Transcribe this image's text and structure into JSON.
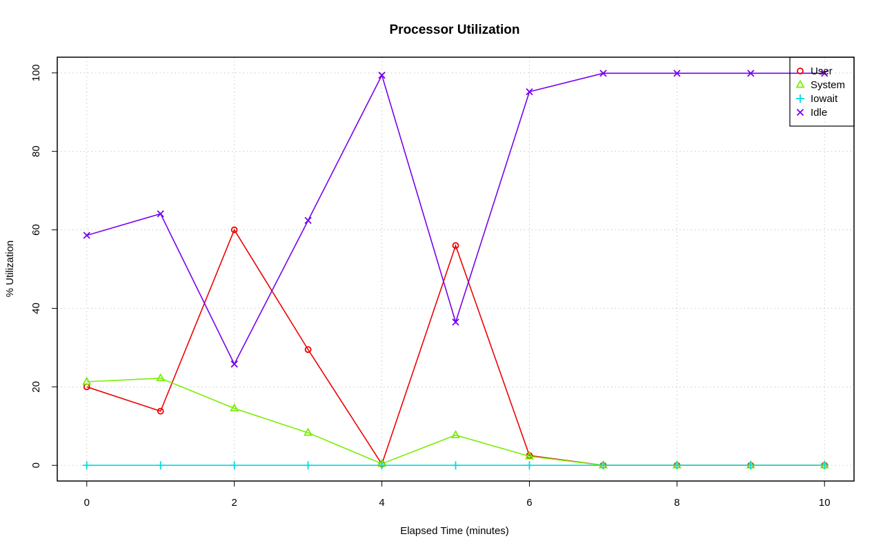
{
  "chart_data": {
    "type": "line",
    "title": "Processor Utilization",
    "xlabel": "Elapsed Time (minutes)",
    "ylabel": "% Utilization",
    "x": [
      0,
      1,
      2,
      3,
      4,
      5,
      6,
      7,
      8,
      9,
      10
    ],
    "xlim": [
      -0.4,
      10.4
    ],
    "ylim": [
      -4,
      104
    ],
    "xticks": [
      0,
      2,
      4,
      6,
      8,
      10
    ],
    "yticks": [
      0,
      20,
      40,
      60,
      80,
      100
    ],
    "xtick_labels": [
      "0",
      "2",
      "4",
      "6",
      "8",
      "10"
    ],
    "ytick_labels": [
      "0",
      "20",
      "40",
      "60",
      "80",
      "100"
    ],
    "grid": true,
    "legend_position": "top-right",
    "series": [
      {
        "name": "User",
        "color": "#ee0000",
        "marker": "circle",
        "values": [
          20,
          13.8,
          60,
          29.5,
          0.3,
          56,
          2.5,
          0,
          0,
          0,
          0
        ]
      },
      {
        "name": "System",
        "color": "#77ee00",
        "marker": "triangle",
        "values": [
          21.3,
          22.2,
          14.5,
          8.3,
          0.4,
          7.7,
          2.3,
          0,
          0,
          0,
          0
        ]
      },
      {
        "name": "Iowait",
        "color": "#00dddd",
        "marker": "plus",
        "values": [
          0,
          0,
          0,
          0,
          0,
          0,
          0,
          0,
          0,
          0,
          0
        ]
      },
      {
        "name": "Idle",
        "color": "#7700ee",
        "marker": "cross",
        "values": [
          58.6,
          64.1,
          25.8,
          62.4,
          99.4,
          36.5,
          95.2,
          99.9,
          99.9,
          99.9,
          99.9
        ]
      }
    ]
  }
}
